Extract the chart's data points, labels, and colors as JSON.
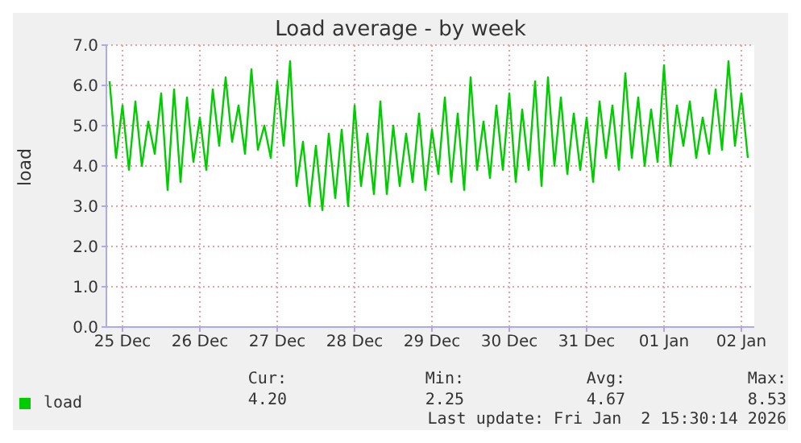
{
  "chart_data": {
    "type": "line",
    "title": "Load average - by week",
    "ylabel": "load",
    "x": [
      "2025-12-24T20:00",
      "2025-12-24T22:00",
      "2025-12-25T00:00",
      "2025-12-25T02:00",
      "2025-12-25T04:00",
      "2025-12-25T06:00",
      "2025-12-25T08:00",
      "2025-12-25T10:00",
      "2025-12-25T12:00",
      "2025-12-25T14:00",
      "2025-12-25T16:00",
      "2025-12-25T18:00",
      "2025-12-25T20:00",
      "2025-12-25T22:00",
      "2025-12-26T00:00",
      "2025-12-26T02:00",
      "2025-12-26T04:00",
      "2025-12-26T06:00",
      "2025-12-26T08:00",
      "2025-12-26T10:00",
      "2025-12-26T12:00",
      "2025-12-26T14:00",
      "2025-12-26T16:00",
      "2025-12-26T18:00",
      "2025-12-26T20:00",
      "2025-12-26T22:00",
      "2025-12-27T00:00",
      "2025-12-27T02:00",
      "2025-12-27T04:00",
      "2025-12-27T06:00",
      "2025-12-27T08:00",
      "2025-12-27T10:00",
      "2025-12-27T12:00",
      "2025-12-27T14:00",
      "2025-12-27T16:00",
      "2025-12-27T18:00",
      "2025-12-27T20:00",
      "2025-12-27T22:00",
      "2025-12-28T00:00",
      "2025-12-28T02:00",
      "2025-12-28T04:00",
      "2025-12-28T06:00",
      "2025-12-28T08:00",
      "2025-12-28T10:00",
      "2025-12-28T12:00",
      "2025-12-28T14:00",
      "2025-12-28T16:00",
      "2025-12-28T18:00",
      "2025-12-28T20:00",
      "2025-12-28T22:00",
      "2025-12-29T00:00",
      "2025-12-29T02:00",
      "2025-12-29T04:00",
      "2025-12-29T06:00",
      "2025-12-29T08:00",
      "2025-12-29T10:00",
      "2025-12-29T12:00",
      "2025-12-29T14:00",
      "2025-12-29T16:00",
      "2025-12-29T18:00",
      "2025-12-29T20:00",
      "2025-12-29T22:00",
      "2025-12-30T00:00",
      "2025-12-30T02:00",
      "2025-12-30T04:00",
      "2025-12-30T06:00",
      "2025-12-30T08:00",
      "2025-12-30T10:00",
      "2025-12-30T12:00",
      "2025-12-30T14:00",
      "2025-12-30T16:00",
      "2025-12-30T18:00",
      "2025-12-30T20:00",
      "2025-12-30T22:00",
      "2025-12-31T00:00",
      "2025-12-31T02:00",
      "2025-12-31T04:00",
      "2025-12-31T06:00",
      "2025-12-31T08:00",
      "2025-12-31T10:00",
      "2025-12-31T12:00",
      "2025-12-31T14:00",
      "2025-12-31T16:00",
      "2025-12-31T18:00",
      "2025-12-31T20:00",
      "2025-12-31T22:00",
      "2026-01-01T00:00",
      "2026-01-01T02:00",
      "2026-01-01T04:00",
      "2026-01-01T06:00",
      "2026-01-01T08:00",
      "2026-01-01T10:00",
      "2026-01-01T12:00",
      "2026-01-01T14:00",
      "2026-01-01T16:00",
      "2026-01-01T18:00",
      "2026-01-01T20:00",
      "2026-01-01T22:00",
      "2026-01-02T00:00",
      "2026-01-02T02:00"
    ],
    "series": [
      {
        "name": "load",
        "color": "#00cc00",
        "values": [
          6.1,
          4.2,
          5.5,
          3.9,
          5.6,
          4.0,
          5.1,
          4.3,
          5.8,
          3.4,
          5.9,
          3.6,
          5.7,
          4.1,
          5.2,
          3.9,
          5.9,
          4.5,
          6.2,
          4.6,
          5.5,
          4.3,
          6.4,
          4.4,
          5.0,
          4.2,
          6.1,
          4.5,
          6.6,
          3.5,
          4.6,
          3.0,
          4.5,
          2.9,
          4.8,
          3.2,
          4.9,
          3.0,
          5.5,
          3.5,
          4.8,
          3.3,
          5.6,
          3.3,
          5.0,
          3.5,
          4.8,
          3.6,
          5.3,
          3.4,
          4.9,
          3.8,
          5.7,
          3.6,
          5.3,
          3.4,
          6.2,
          3.9,
          5.1,
          3.7,
          5.5,
          3.9,
          5.8,
          3.6,
          5.4,
          3.9,
          6.1,
          3.5,
          6.2,
          4.0,
          5.7,
          3.8,
          5.3,
          3.9,
          5.2,
          3.6,
          5.6,
          4.2,
          5.5,
          3.9,
          6.3,
          4.2,
          5.7,
          4.0,
          5.4,
          4.1,
          6.5,
          4.0,
          5.5,
          4.5,
          5.6,
          4.2,
          5.2,
          4.3,
          5.9,
          4.4,
          6.6,
          4.5,
          5.8,
          4.2
        ]
      }
    ],
    "xlim": [
      "2025-12-24T19:00",
      "2026-01-02T04:00"
    ],
    "xticks": [
      {
        "value": "2025-12-25T00:00",
        "label": "25 Dec"
      },
      {
        "value": "2025-12-26T00:00",
        "label": "26 Dec"
      },
      {
        "value": "2025-12-27T00:00",
        "label": "27 Dec"
      },
      {
        "value": "2025-12-28T00:00",
        "label": "28 Dec"
      },
      {
        "value": "2025-12-29T00:00",
        "label": "29 Dec"
      },
      {
        "value": "2025-12-30T00:00",
        "label": "30 Dec"
      },
      {
        "value": "2025-12-31T00:00",
        "label": "31 Dec"
      },
      {
        "value": "2026-01-01T00:00",
        "label": "01 Jan"
      },
      {
        "value": "2026-01-02T00:00",
        "label": "02 Jan"
      }
    ],
    "ylim": [
      0,
      7
    ],
    "yticks": [
      {
        "value": 0,
        "label": "0.0"
      },
      {
        "value": 1,
        "label": "1.0"
      },
      {
        "value": 2,
        "label": "2.0"
      },
      {
        "value": 3,
        "label": "3.0"
      },
      {
        "value": 4,
        "label": "4.0"
      },
      {
        "value": 5,
        "label": "5.0"
      },
      {
        "value": 6,
        "label": "6.0"
      },
      {
        "value": 7,
        "label": "7.0"
      }
    ],
    "grid": true,
    "legend": "bottom left",
    "marker": "none",
    "line_style": "solid",
    "annotations": [
      "Cur:",
      "Min:",
      "Avg:",
      "Max:",
      "4.20",
      "2.25",
      "4.67",
      "8.53",
      "Last update: Fri Jan  2 15:30:14 2026"
    ]
  }
}
